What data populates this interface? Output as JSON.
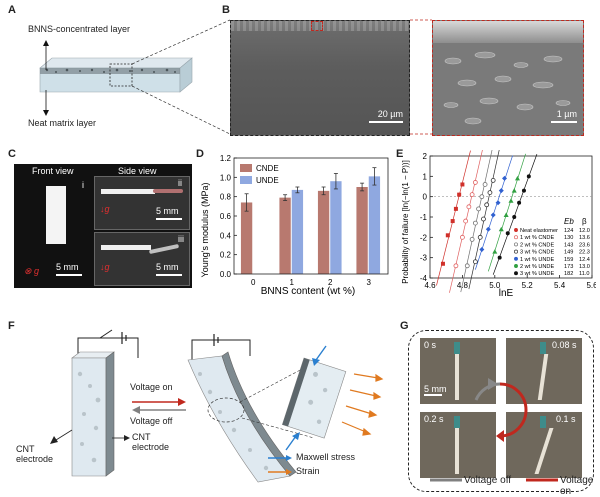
{
  "panels": {
    "A": {
      "letter": "A",
      "top_label": "BNNS-concentrated layer",
      "bottom_label": "Neat matrix layer"
    },
    "B": {
      "letter": "B",
      "scale_left": "20 µm",
      "scale_right": "1 µm"
    },
    "C": {
      "letter": "C",
      "front_title": "Front view",
      "side_title": "Side view",
      "sub_i": "i",
      "sub_ii": "ii",
      "sub_iii": "iii",
      "g_label": "g",
      "scale_front": "5 mm",
      "scale_side_top": "5 mm",
      "scale_side_bottom": "5 mm"
    },
    "D": {
      "letter": "D"
    },
    "E": {
      "letter": "E",
      "legend_header_eb": "Eb",
      "legend_header_beta": "β"
    },
    "F": {
      "letter": "F",
      "voltage_on": "Voltage on",
      "voltage_off": "Voltage off",
      "cnt_electrode_left": "CNT electrode",
      "cnt_electrode_right": "CNT electrode",
      "legend_maxwell": "Maxwell stress",
      "legend_strain": "Strain"
    },
    "G": {
      "letter": "G",
      "t0": "0 s",
      "t1": "0.08 s",
      "t2": "0.1 s",
      "t3": "0.2 s",
      "scale": "5 mm",
      "legend_off": "Voltage off",
      "legend_on": "Voltage on"
    }
  },
  "colors": {
    "cnde": "#b8796f",
    "unde": "#8fa8e0",
    "voltage_on": "#c0281e",
    "voltage_off": "#808080",
    "maxwell_arrow": "#2a7fcf",
    "strain_arrow": "#e07a20"
  },
  "chart_data": [
    {
      "type": "bar",
      "ylabel": "Young's modulus (MPa)",
      "xlabel": "BNNS content (wt %)",
      "ylim": [
        0,
        1.2
      ],
      "yticks": [
        "0.0",
        "0.2",
        "0.4",
        "0.6",
        "0.8",
        "1.0",
        "1.2"
      ],
      "categories": [
        "0",
        "1",
        "2",
        "3"
      ],
      "legend_placement": "top-left",
      "series": [
        {
          "name": "CNDE",
          "values": [
            0.74,
            0.79,
            0.86,
            0.9
          ],
          "errors": [
            0.09,
            0.03,
            0.04,
            0.04
          ]
        },
        {
          "name": "UNDE",
          "values": [
            null,
            0.87,
            0.96,
            1.01
          ],
          "errors": [
            null,
            0.03,
            0.08,
            0.09
          ]
        }
      ]
    },
    {
      "type": "scatter",
      "ylabel": "Probability of failure [ln(−ln(1 − P))]",
      "xlabel": "lnE",
      "xlim": [
        4.6,
        5.6
      ],
      "ylim": [
        -4,
        2
      ],
      "xticks": [
        "4.6",
        "4.8",
        "5.0",
        "5.2",
        "5.4",
        "5.6"
      ],
      "yticks": [
        "-4",
        "-3",
        "-2",
        "-1",
        "0",
        "1",
        "2"
      ],
      "legend_placement": "bottom-right",
      "series": [
        {
          "name": "Neat elastomer",
          "eb": "124",
          "beta": "12.0",
          "color": "#d0302a",
          "marker": "filled-square",
          "x": [
            4.68,
            4.71,
            4.74,
            4.76,
            4.78,
            4.8
          ],
          "y": [
            -3.3,
            -1.9,
            -1.2,
            -0.6,
            0.1,
            0.6
          ]
        },
        {
          "name": "1 wt % CNDE",
          "eb": "130",
          "beta": "13.6",
          "color": "#e06060",
          "marker": "open-circle",
          "x": [
            4.76,
            4.8,
            4.82,
            4.84,
            4.86,
            4.88
          ],
          "y": [
            -3.4,
            -2.0,
            -1.2,
            -0.5,
            0.1,
            0.7
          ]
        },
        {
          "name": "2 wt % CNDE",
          "eb": "143",
          "beta": "23.6",
          "color": "#707070",
          "marker": "open-circle",
          "x": [
            4.83,
            4.86,
            4.88,
            4.9,
            4.92,
            4.94
          ],
          "y": [
            -3.4,
            -2.1,
            -1.3,
            -0.6,
            0.0,
            0.6
          ]
        },
        {
          "name": "3 wt % CNDE",
          "eb": "149",
          "beta": "22.3",
          "color": "#303030",
          "marker": "open-circle",
          "x": [
            4.88,
            4.91,
            4.93,
            4.95,
            4.97,
            4.99
          ],
          "y": [
            -3.2,
            -2.0,
            -1.1,
            -0.4,
            0.2,
            0.8
          ]
        },
        {
          "name": "1 wt % UNDE",
          "eb": "159",
          "beta": "12.4",
          "color": "#3060d0",
          "marker": "filled-diamond",
          "x": [
            4.92,
            4.96,
            4.99,
            5.02,
            5.04,
            5.06
          ],
          "y": [
            -2.6,
            -1.6,
            -0.9,
            -0.3,
            0.3,
            0.9
          ]
        },
        {
          "name": "2 wt % UNDE",
          "eb": "173",
          "beta": "13.0",
          "color": "#30a040",
          "marker": "filled-triangle",
          "x": [
            5.0,
            5.04,
            5.07,
            5.1,
            5.12,
            5.14
          ],
          "y": [
            -2.7,
            -1.6,
            -0.9,
            -0.2,
            0.3,
            0.9
          ]
        },
        {
          "name": "3 wt % UNDE",
          "eb": "182",
          "beta": "11.0",
          "color": "#101010",
          "marker": "filled-circle",
          "x": [
            5.03,
            5.08,
            5.12,
            5.15,
            5.18,
            5.21
          ],
          "y": [
            -3.0,
            -1.8,
            -1.0,
            -0.3,
            0.3,
            1.0
          ]
        }
      ]
    }
  ]
}
